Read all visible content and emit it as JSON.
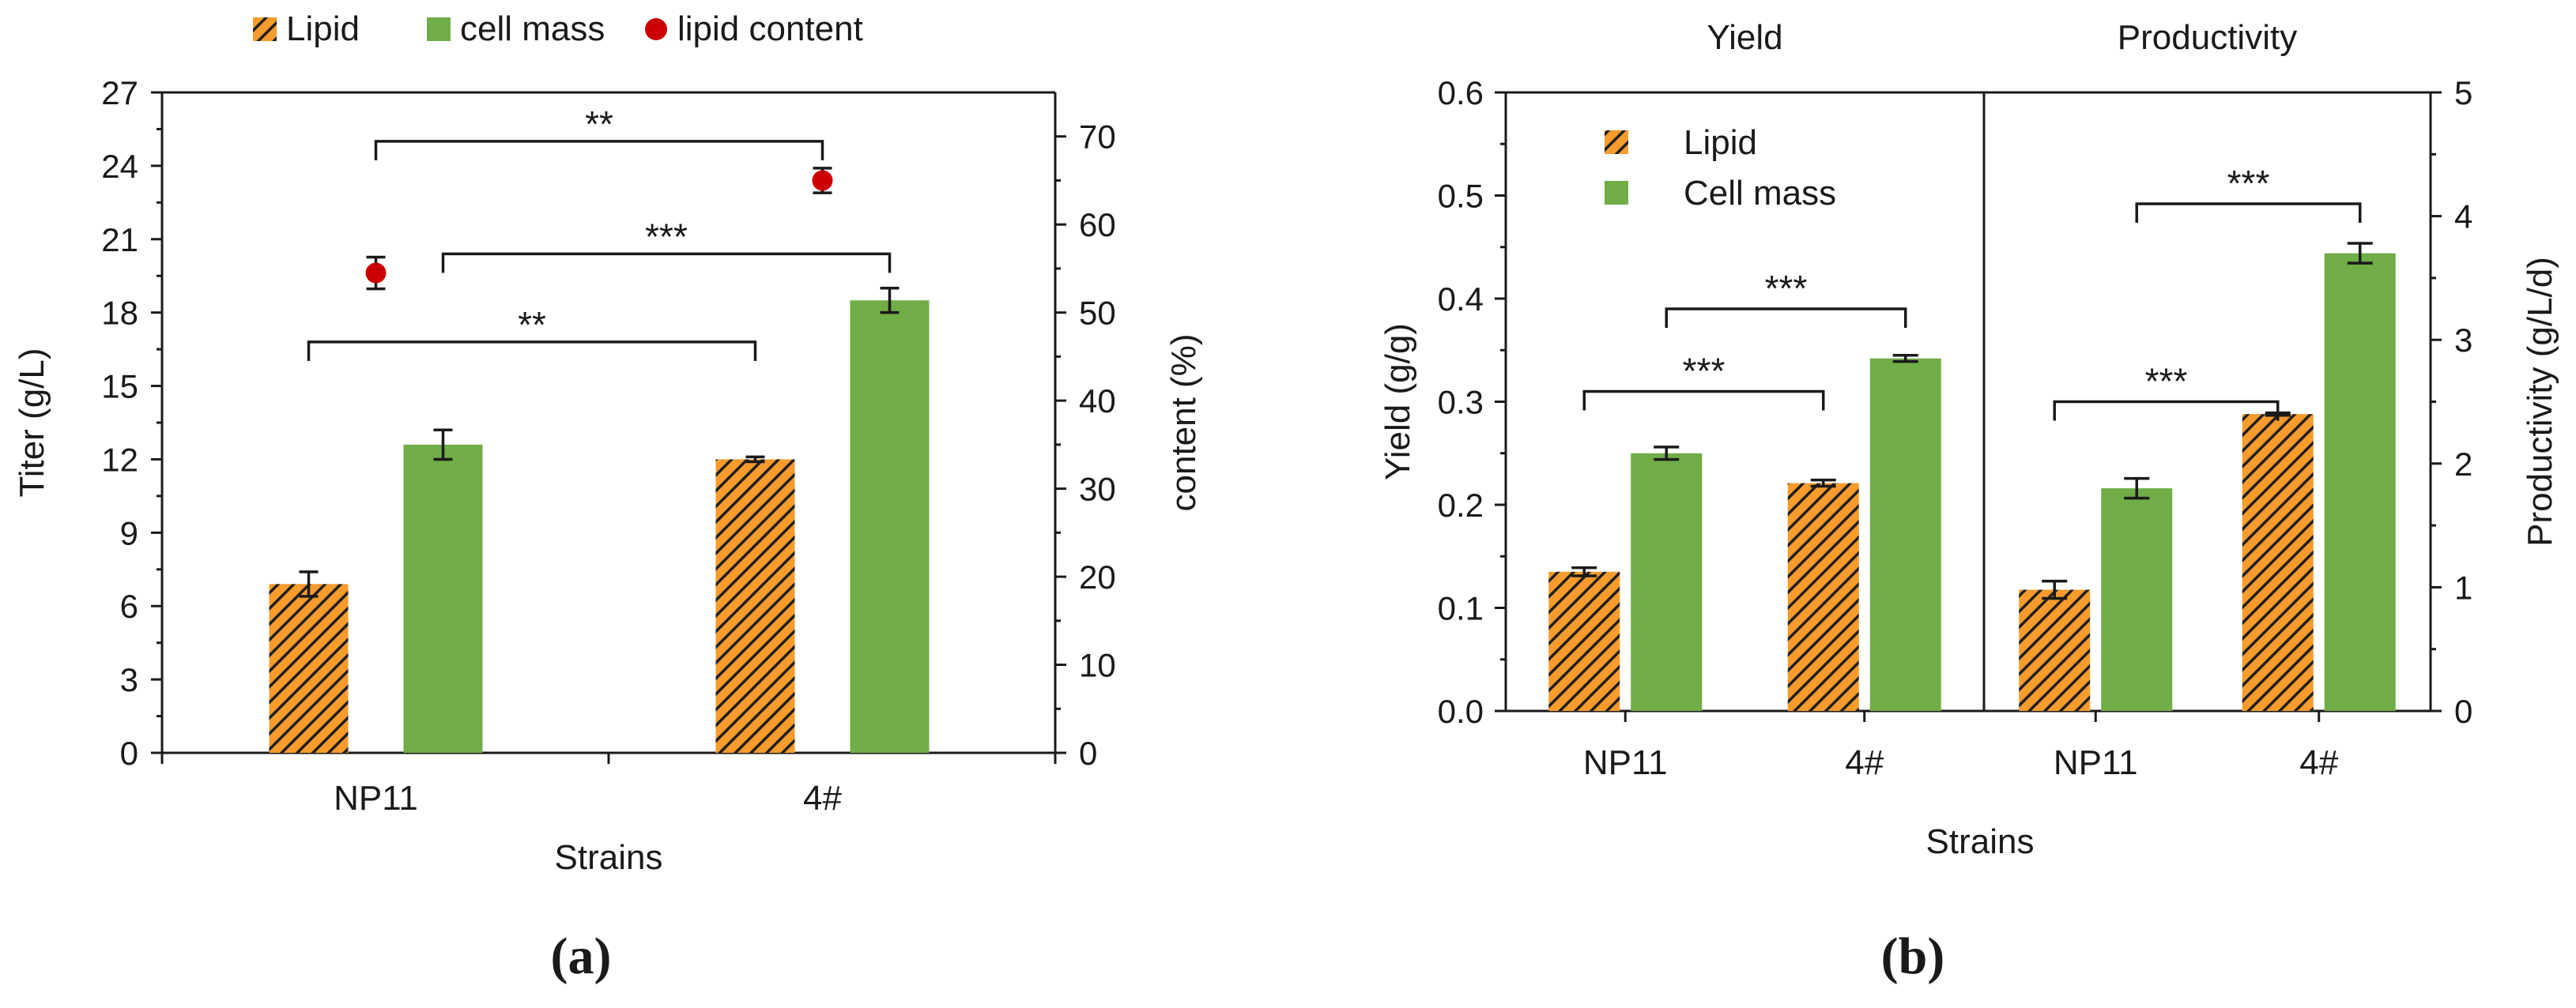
{
  "colors": {
    "lipid_fill": "#f79b2c",
    "lipid_hatch": "#1f1f1f",
    "cell_mass": "#70ad47",
    "lipid_content_point": "#cc0000",
    "divider": "#1a1a1a"
  },
  "chart_data": [
    {
      "panel": "(a)",
      "type": "bar",
      "title": "",
      "xlabel": "Strains",
      "ylabel": "Titer (g/L)",
      "y2label": "content (%)",
      "categories": [
        "NP11",
        "4#"
      ],
      "ylim": [
        0,
        27
      ],
      "yticks": [
        0,
        3,
        6,
        9,
        12,
        15,
        18,
        21,
        24,
        27
      ],
      "y2lim": [
        0,
        75
      ],
      "y2ticks": [
        0,
        10,
        20,
        30,
        40,
        50,
        60,
        70
      ],
      "legend": {
        "position": "top",
        "entries": [
          {
            "label": "Lipid",
            "marker": "hatched-square"
          },
          {
            "label": "cell mass",
            "marker": "square"
          },
          {
            "label": "lipid content",
            "marker": "circle"
          }
        ]
      },
      "series": [
        {
          "name": "Lipid",
          "axis": "left",
          "kind": "bar",
          "values": [
            6.9,
            12.0
          ],
          "errors": [
            0.5,
            0.1
          ]
        },
        {
          "name": "cell mass",
          "axis": "left",
          "kind": "bar",
          "values": [
            12.6,
            18.5
          ],
          "errors": [
            0.6,
            0.5
          ]
        },
        {
          "name": "lipid content",
          "axis": "right",
          "kind": "point",
          "values": [
            54.5,
            65.0
          ],
          "errors": [
            1.8,
            1.4
          ]
        }
      ],
      "significance": [
        {
          "label": "**",
          "from": {
            "series": "lipid content",
            "category": "NP11"
          },
          "to": {
            "series": "lipid content",
            "category": "4#"
          },
          "level": 25.0
        },
        {
          "label": "***",
          "from": {
            "series": "cell mass",
            "category": "NP11"
          },
          "to": {
            "series": "cell mass",
            "category": "4#"
          },
          "level": 20.4
        },
        {
          "label": "**",
          "from": {
            "series": "Lipid",
            "category": "NP11"
          },
          "to": {
            "series": "Lipid",
            "category": "4#"
          },
          "level": 16.8
        }
      ]
    },
    {
      "panel": "(b)",
      "type": "bar",
      "xlabel": "Strains",
      "ylabel": "Yield (g/g)",
      "y2label": "Productivity (g/L/d)",
      "ylim": [
        0,
        0.6
      ],
      "yticks": [
        "0.0",
        "0.1",
        "0.2",
        "0.3",
        "0.4",
        "0.5",
        "0.6"
      ],
      "y2lim": [
        0,
        5
      ],
      "y2ticks": [
        0,
        1,
        2,
        3,
        4,
        5
      ],
      "legend": {
        "position": "top-left",
        "entries": [
          {
            "label": "Lipid",
            "marker": "hatched-square"
          },
          {
            "label": "Cell mass",
            "marker": "square"
          }
        ]
      },
      "subpanels": [
        {
          "title": "Yield",
          "axis": "left",
          "categories": [
            "NP11",
            "4#"
          ],
          "series": [
            {
              "name": "Lipid",
              "values": [
                0.135,
                0.221
              ],
              "errors": [
                0.004,
                0.003
              ]
            },
            {
              "name": "Cell mass",
              "values": [
                0.25,
                0.342
              ],
              "errors": [
                0.006,
                0.003
              ]
            }
          ],
          "significance": [
            {
              "label": "***",
              "from": {
                "series": "Lipid",
                "category": "NP11"
              },
              "to": {
                "series": "Lipid",
                "category": "4#"
              },
              "level": 0.31
            },
            {
              "label": "***",
              "from": {
                "series": "Cell mass",
                "category": "NP11"
              },
              "to": {
                "series": "Cell mass",
                "category": "4#"
              },
              "level": 0.39
            }
          ]
        },
        {
          "title": "Productivity",
          "axis": "right",
          "categories": [
            "NP11",
            "4#"
          ],
          "series": [
            {
              "name": "Lipid",
              "values": [
                0.98,
                2.4
              ],
              "errors": [
                0.07,
                0.01
              ]
            },
            {
              "name": "Cell mass",
              "values": [
                1.8,
                3.7
              ],
              "errors": [
                0.08,
                0.08
              ]
            }
          ],
          "significance": [
            {
              "label": "***",
              "from": {
                "series": "Lipid",
                "category": "NP11"
              },
              "to": {
                "series": "Lipid",
                "category": "4#"
              },
              "level": 2.5
            },
            {
              "label": "***",
              "from": {
                "series": "Cell mass",
                "category": "NP11"
              },
              "to": {
                "series": "Cell mass",
                "category": "4#"
              },
              "level": 4.1
            }
          ]
        }
      ]
    }
  ]
}
